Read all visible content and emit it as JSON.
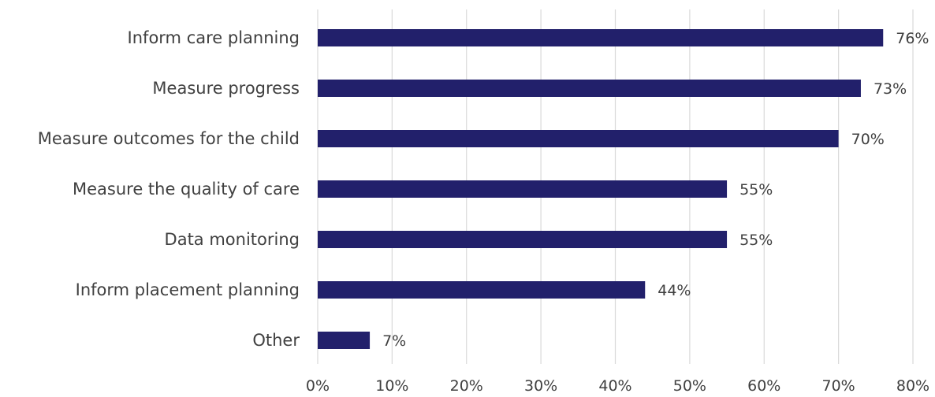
{
  "chart_data": {
    "type": "bar",
    "orientation": "horizontal",
    "categories": [
      "Inform care planning",
      "Measure progress",
      "Measure outcomes for the child",
      "Measure the quality of care",
      "Data monitoring",
      "Inform placement planning",
      "Other"
    ],
    "values": [
      76,
      73,
      70,
      55,
      55,
      44,
      7
    ],
    "value_labels": [
      "76%",
      "73%",
      "70%",
      "55%",
      "55%",
      "44%",
      "7%"
    ],
    "x_ticks": [
      "0%",
      "10%",
      "20%",
      "30%",
      "40%",
      "50%",
      "60%",
      "70%",
      "80%"
    ],
    "xlim": [
      0,
      80
    ],
    "grid": "vertical",
    "bar_color": "#22206b",
    "legend": "none"
  }
}
